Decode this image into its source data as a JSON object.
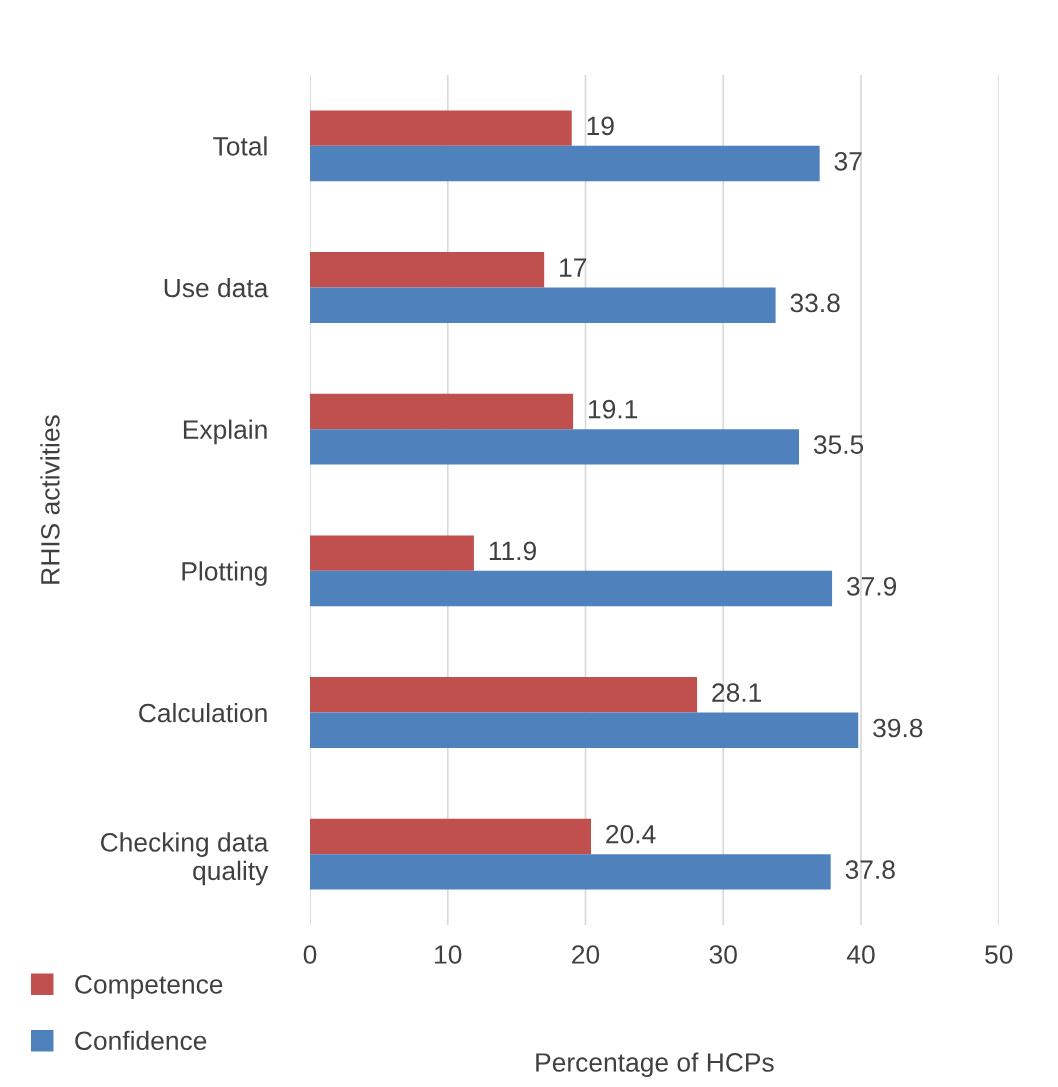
{
  "chart_data": {
    "type": "bar",
    "orientation": "horizontal",
    "xlabel": "Percentage of HCPs",
    "ylabel": "RHIS activities",
    "categories": [
      "Total",
      "Use data",
      "Explain",
      "Plotting",
      "Calculation",
      "Checking data\nquality"
    ],
    "series": [
      {
        "name": "Competence",
        "color": "#c0504d",
        "values": [
          19,
          17,
          19.1,
          11.9,
          28.1,
          20.4
        ]
      },
      {
        "name": "Confidence",
        "color": "#4f81bd",
        "values": [
          37,
          33.8,
          35.5,
          37.9,
          39.8,
          37.8
        ]
      }
    ],
    "xlim": [
      0,
      50
    ],
    "xticks": [
      0,
      10,
      20,
      30,
      40,
      50
    ],
    "grid": "x",
    "legend": "bottom left",
    "data_labels": true
  }
}
